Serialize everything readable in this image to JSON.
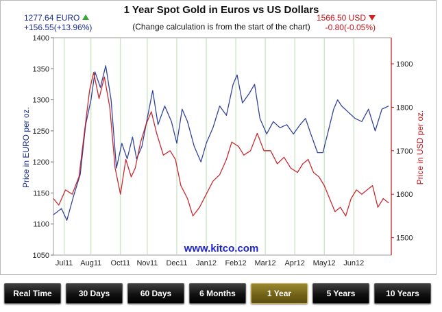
{
  "readouts": {
    "euro_price": "1277.64 EURO",
    "euro_change": "+156.55(+13.96%)",
    "usd_price": "1566.50 USD",
    "usd_change": "-0.80(-0.05%)"
  },
  "colors": {
    "euro": "#1d2f8f",
    "usd": "#c0141b",
    "grid": "#b8dcb0",
    "tab_active": "#7a6a1c"
  },
  "tabs": [
    {
      "label": "Real Time",
      "active": false
    },
    {
      "label": "30 Days",
      "active": false
    },
    {
      "label": "60 Days",
      "active": false
    },
    {
      "label": "6 Months",
      "active": false
    },
    {
      "label": "1 Year",
      "active": true
    },
    {
      "label": "5 Years",
      "active": false
    },
    {
      "label": "10 Years",
      "active": false
    }
  ],
  "chart_data": {
    "type": "line",
    "title": "1 Year Spot Gold in Euros vs US Dollars",
    "subtitle": "(Change calculation is from the start of the chart)",
    "watermark": "www.kitco.com",
    "ylabel_left": "Price in EURO per oz.",
    "ylabel_right": "Price in USD per oz.",
    "ylim_left": [
      1050,
      1400
    ],
    "ylim_right": [
      1460,
      1960
    ],
    "yticks_left": [
      1050,
      1100,
      1150,
      1200,
      1250,
      1300,
      1350,
      1400
    ],
    "yticks_right": [
      1500,
      1600,
      1700,
      1800,
      1900
    ],
    "x_range": [
      0,
      12.6
    ],
    "x_ticks": [
      {
        "label": "Jul11",
        "x": 0.4
      },
      {
        "label": "Aug11",
        "x": 1.4
      },
      {
        "label": "Oct11",
        "x": 2.5
      },
      {
        "label": "Nov11",
        "x": 3.5
      },
      {
        "label": "Dec11",
        "x": 4.6
      },
      {
        "label": "Jan12",
        "x": 5.7
      },
      {
        "label": "Feb12",
        "x": 6.8
      },
      {
        "label": "Mar12",
        "x": 7.9
      },
      {
        "label": "Apr12",
        "x": 9.0
      },
      {
        "label": "May12",
        "x": 10.1
      },
      {
        "label": "Jun12",
        "x": 11.2
      }
    ],
    "series": [
      {
        "name": "EURO",
        "axis": "left",
        "color": "#1d2f8f",
        "x": [
          0.0,
          0.3,
          0.5,
          0.75,
          1.0,
          1.2,
          1.4,
          1.55,
          1.75,
          1.95,
          2.15,
          2.35,
          2.55,
          2.75,
          2.95,
          3.1,
          3.3,
          3.5,
          3.7,
          3.9,
          4.15,
          4.4,
          4.6,
          4.8,
          5.0,
          5.25,
          5.5,
          5.7,
          5.95,
          6.2,
          6.45,
          6.7,
          6.85,
          7.05,
          7.3,
          7.5,
          7.7,
          7.95,
          8.2,
          8.45,
          8.7,
          8.95,
          9.2,
          9.4,
          9.6,
          9.85,
          10.05,
          10.25,
          10.45,
          10.6,
          10.75,
          11.0,
          11.25,
          11.5,
          11.75,
          12.0,
          12.25,
          12.5
        ],
        "values": [
          1115,
          1125,
          1106,
          1145,
          1180,
          1260,
          1300,
          1345,
          1320,
          1355,
          1300,
          1190,
          1230,
          1205,
          1240,
          1205,
          1225,
          1270,
          1315,
          1260,
          1290,
          1265,
          1230,
          1285,
          1265,
          1225,
          1200,
          1230,
          1255,
          1290,
          1275,
          1325,
          1340,
          1295,
          1310,
          1325,
          1270,
          1245,
          1265,
          1255,
          1260,
          1245,
          1260,
          1270,
          1245,
          1215,
          1215,
          1250,
          1285,
          1300,
          1290,
          1280,
          1270,
          1265,
          1285,
          1250,
          1285,
          1290
        ]
      },
      {
        "name": "USD",
        "axis": "right",
        "color": "#c0141b",
        "x": [
          0.0,
          0.2,
          0.45,
          0.7,
          0.95,
          1.15,
          1.35,
          1.5,
          1.7,
          1.9,
          2.1,
          2.3,
          2.5,
          2.7,
          2.9,
          3.05,
          3.25,
          3.45,
          3.65,
          3.85,
          4.1,
          4.35,
          4.55,
          4.75,
          5.0,
          5.2,
          5.45,
          5.7,
          5.95,
          6.2,
          6.45,
          6.65,
          6.9,
          7.1,
          7.35,
          7.6,
          7.85,
          8.1,
          8.35,
          8.6,
          8.85,
          9.1,
          9.3,
          9.5,
          9.7,
          9.9,
          10.1,
          10.3,
          10.5,
          10.7,
          10.9,
          11.1,
          11.3,
          11.5,
          11.7,
          11.9,
          12.1,
          12.3,
          12.5
        ],
        "values": [
          1590,
          1575,
          1610,
          1600,
          1640,
          1740,
          1840,
          1880,
          1820,
          1870,
          1800,
          1660,
          1600,
          1680,
          1640,
          1660,
          1720,
          1760,
          1790,
          1740,
          1690,
          1700,
          1680,
          1620,
          1590,
          1550,
          1570,
          1600,
          1630,
          1645,
          1680,
          1720,
          1710,
          1690,
          1700,
          1740,
          1700,
          1700,
          1670,
          1685,
          1660,
          1650,
          1670,
          1680,
          1650,
          1640,
          1620,
          1590,
          1560,
          1570,
          1550,
          1590,
          1610,
          1600,
          1610,
          1620,
          1570,
          1590,
          1580
        ]
      }
    ]
  }
}
